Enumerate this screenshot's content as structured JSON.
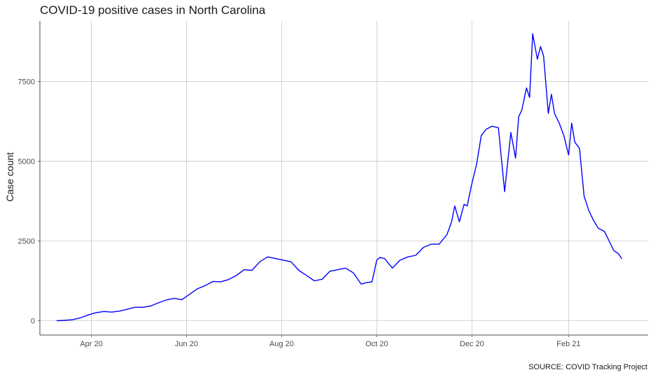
{
  "chart_data": {
    "type": "line",
    "title": "COVID-19 positive cases in North Carolina",
    "xlabel": "",
    "ylabel": "Case count",
    "caption": "SOURCE: COVID Tracking Project",
    "x_range": [
      "2020-02-28",
      "2021-03-24"
    ],
    "ylim": [
      -450,
      9400
    ],
    "y_ticks": [
      0,
      2500,
      5000,
      7500
    ],
    "y_tick_labels": [
      "0",
      "2500",
      "5000",
      "7500"
    ],
    "x_ticks": [
      "2020-04-01",
      "2020-06-01",
      "2020-08-01",
      "2020-10-01",
      "2020-12-01",
      "2021-02-01"
    ],
    "x_tick_labels": [
      "Apr 20",
      "Jun 20",
      "Aug 20",
      "Oct 20",
      "Dec 20",
      "Feb 21"
    ],
    "grid": true,
    "line_color": "#0000ff",
    "series": [
      {
        "x": [
          "2020-03-10",
          "2020-03-15",
          "2020-03-20",
          "2020-03-25",
          "2020-03-30",
          "2020-04-04",
          "2020-04-09",
          "2020-04-14",
          "2020-04-19",
          "2020-04-24",
          "2020-04-29",
          "2020-05-04",
          "2020-05-09",
          "2020-05-14",
          "2020-05-19",
          "2020-05-24",
          "2020-05-29",
          "2020-06-03",
          "2020-06-08",
          "2020-06-13",
          "2020-06-18",
          "2020-06-23",
          "2020-06-28",
          "2020-07-03",
          "2020-07-08",
          "2020-07-13",
          "2020-07-18",
          "2020-07-23",
          "2020-07-28",
          "2020-08-02",
          "2020-08-07",
          "2020-08-12",
          "2020-08-17",
          "2020-08-22",
          "2020-08-27",
          "2020-09-01",
          "2020-09-06",
          "2020-09-11",
          "2020-09-16",
          "2020-09-21",
          "2020-09-25",
          "2020-09-28",
          "2020-10-01",
          "2020-10-03",
          "2020-10-06",
          "2020-10-11",
          "2020-10-16",
          "2020-10-21",
          "2020-10-26",
          "2020-10-31",
          "2020-11-05",
          "2020-11-10",
          "2020-11-15",
          "2020-11-18",
          "2020-11-20",
          "2020-11-23",
          "2020-11-26",
          "2020-11-28",
          "2020-12-01",
          "2020-12-04",
          "2020-12-07",
          "2020-12-10",
          "2020-12-14",
          "2020-12-18",
          "2020-12-22",
          "2020-12-26",
          "2020-12-29",
          "2020-12-31",
          "2021-01-02",
          "2021-01-05",
          "2021-01-07",
          "2021-01-09",
          "2021-01-12",
          "2021-01-14",
          "2021-01-16",
          "2021-01-19",
          "2021-01-21",
          "2021-01-23",
          "2021-01-26",
          "2021-01-29",
          "2021-02-01",
          "2021-02-03",
          "2021-02-05",
          "2021-02-08",
          "2021-02-11",
          "2021-02-14",
          "2021-02-17",
          "2021-02-20",
          "2021-02-24",
          "2021-02-27",
          "2021-03-02",
          "2021-03-05",
          "2021-03-07"
        ],
        "y": [
          0,
          10,
          30,
          90,
          180,
          250,
          290,
          270,
          300,
          360,
          420,
          420,
          460,
          560,
          650,
          700,
          660,
          830,
          1000,
          1100,
          1230,
          1220,
          1290,
          1420,
          1600,
          1580,
          1850,
          2000,
          1950,
          1900,
          1850,
          1580,
          1420,
          1250,
          1300,
          1550,
          1600,
          1650,
          1500,
          1150,
          1200,
          1220,
          1900,
          1980,
          1950,
          1650,
          1900,
          2000,
          2050,
          2300,
          2400,
          2400,
          2700,
          3100,
          3600,
          3100,
          3650,
          3600,
          4300,
          4900,
          5800,
          6000,
          6100,
          6050,
          4050,
          5900,
          5100,
          6400,
          6600,
          7300,
          7000,
          9000,
          8200,
          8600,
          8300,
          6500,
          7100,
          6500,
          6200,
          5800,
          5200,
          6200,
          5600,
          5400,
          3900,
          3450,
          3150,
          2900,
          2800,
          2500,
          2200,
          2100,
          1950
        ]
      }
    ]
  }
}
